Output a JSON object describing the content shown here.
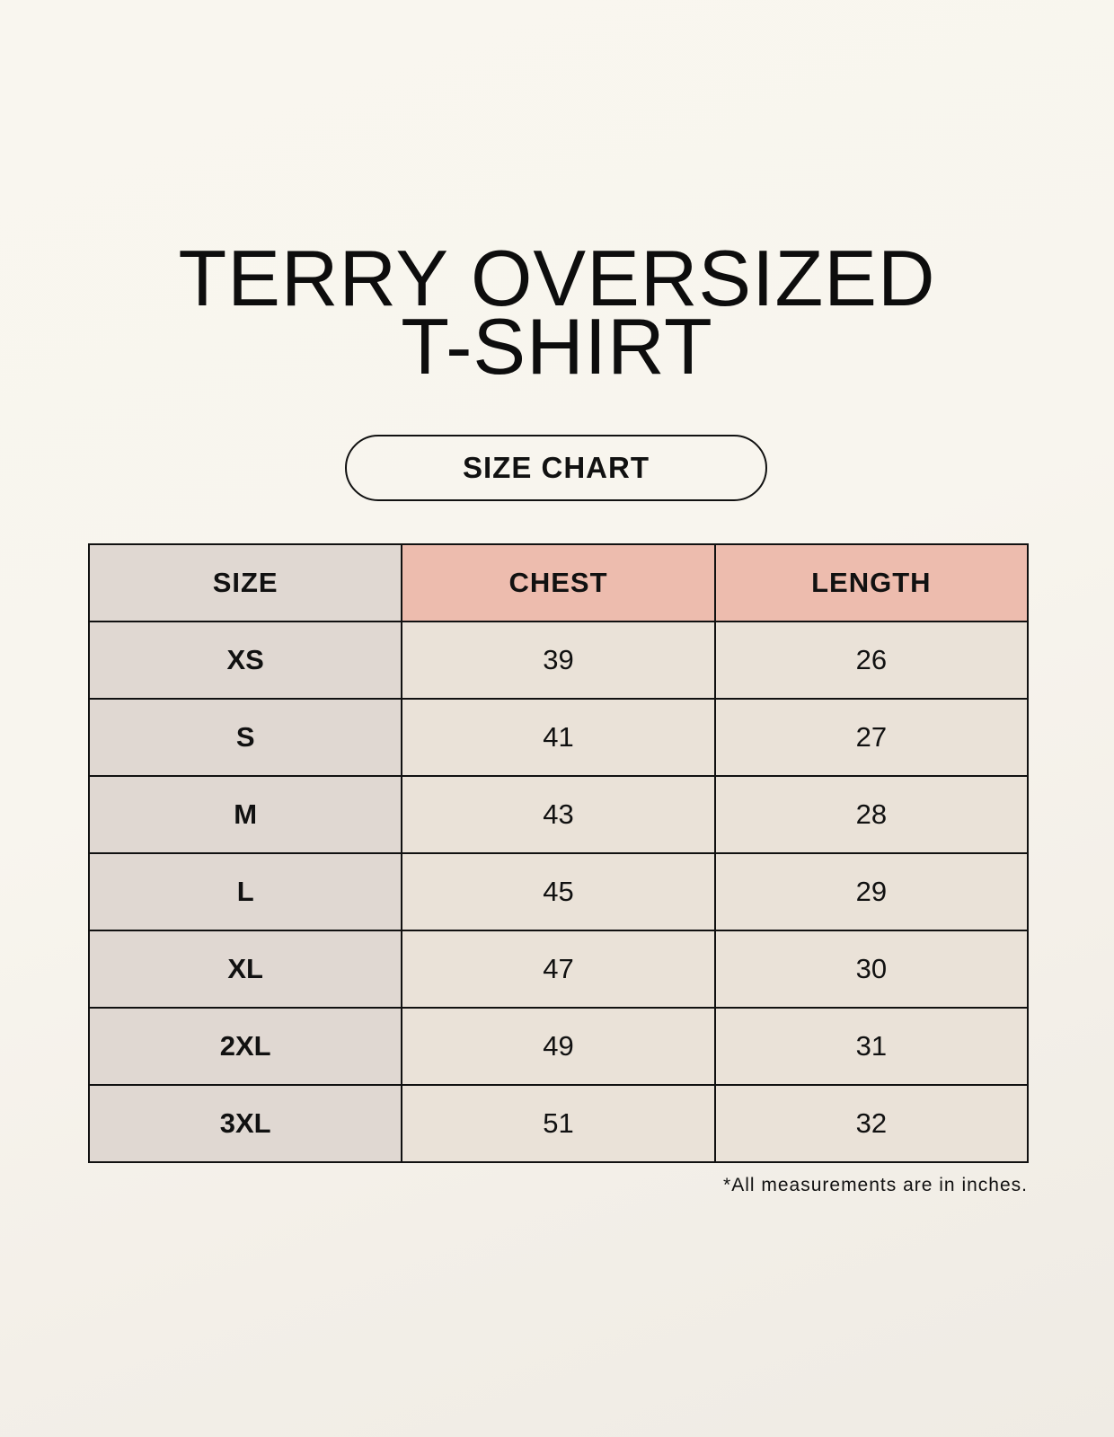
{
  "title": {
    "line1": "TERRY OVERSIZED",
    "line2": "T-SHIRT"
  },
  "badge": "SIZE CHART",
  "table": {
    "headers": [
      "SIZE",
      "CHEST",
      "LENGTH"
    ],
    "rows": [
      [
        "XS",
        "39",
        "26"
      ],
      [
        "S",
        "41",
        "27"
      ],
      [
        "M",
        "43",
        "28"
      ],
      [
        "L",
        "45",
        "29"
      ],
      [
        "XL",
        "47",
        "30"
      ],
      [
        "2XL",
        "49",
        "31"
      ],
      [
        "3XL",
        "51",
        "32"
      ]
    ]
  },
  "footnote": "*All measurements are in inches.",
  "colors": {
    "size_column": "#e0d8d2",
    "header_highlight": "#edbcae",
    "cell": "#eae2d8"
  }
}
